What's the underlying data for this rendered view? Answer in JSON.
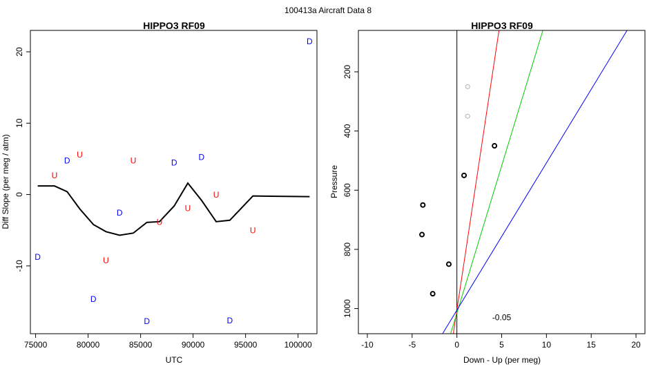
{
  "page_title": "100413a   Aircraft Data 8",
  "colors": {
    "up": "#ff0000",
    "down": "#0000ff",
    "line": "#000000",
    "red_line": "#ff0000",
    "green_line": "#00cc00",
    "blue_line": "#0000ff",
    "grey_point": "#b0b0b0"
  },
  "chart_data": [
    {
      "type": "scatter",
      "title": "HIPPO3 RF09",
      "xlabel": "UTC",
      "ylabel": "Diff Slope (per meg / atm)",
      "xlim": [
        74500,
        101800
      ],
      "ylim": [
        -19.5,
        23
      ],
      "xticks": [
        75000,
        80000,
        85000,
        90000,
        95000,
        100000
      ],
      "yticks": [
        -10,
        0,
        10,
        20
      ],
      "letters": [
        {
          "label": "D",
          "x": 75200,
          "y": -8.7,
          "series": "down"
        },
        {
          "label": "U",
          "x": 76800,
          "y": 2.7,
          "series": "up"
        },
        {
          "label": "D",
          "x": 78000,
          "y": 4.8,
          "series": "down"
        },
        {
          "label": "U",
          "x": 79200,
          "y": 5.6,
          "series": "up"
        },
        {
          "label": "D",
          "x": 80500,
          "y": -14.6,
          "series": "down"
        },
        {
          "label": "U",
          "x": 81700,
          "y": -9.2,
          "series": "up"
        },
        {
          "label": "D",
          "x": 83000,
          "y": -2.5,
          "series": "down"
        },
        {
          "label": "U",
          "x": 84300,
          "y": 4.8,
          "series": "up"
        },
        {
          "label": "D",
          "x": 85600,
          "y": -17.7,
          "series": "down"
        },
        {
          "label": "U",
          "x": 86800,
          "y": -3.8,
          "series": "up"
        },
        {
          "label": "D",
          "x": 88200,
          "y": 4.5,
          "series": "down"
        },
        {
          "label": "U",
          "x": 89500,
          "y": -1.9,
          "series": "up"
        },
        {
          "label": "D",
          "x": 90800,
          "y": 5.3,
          "series": "down"
        },
        {
          "label": "U",
          "x": 92200,
          "y": 0,
          "series": "up"
        },
        {
          "label": "D",
          "x": 93500,
          "y": -17.6,
          "series": "down"
        },
        {
          "label": "U",
          "x": 95700,
          "y": -5,
          "series": "up"
        },
        {
          "label": "D",
          "x": 101100,
          "y": 21.5,
          "series": "down"
        }
      ],
      "smooth_line": {
        "x": [
          75200,
          76800,
          78000,
          79200,
          80500,
          81700,
          83000,
          84300,
          85600,
          86800,
          88200,
          89500,
          90800,
          92200,
          93500,
          95700,
          101100
        ],
        "y": [
          1.2,
          1.2,
          0.4,
          -2,
          -4.2,
          -5.2,
          -5.7,
          -5.4,
          -3.9,
          -3.8,
          -1.6,
          1.6,
          -0.8,
          -3.8,
          -3.6,
          -0.2,
          -0.3
        ]
      }
    },
    {
      "type": "scatter",
      "title": "HIPPO3 RF09",
      "xlabel": "Down - Up (per meg)",
      "ylabel": "Pressure",
      "xlim": [
        -11,
        21
      ],
      "ylim": [
        1085,
        60
      ],
      "xticks": [
        -10,
        -5,
        0,
        5,
        10,
        15,
        20
      ],
      "yticks": [
        200,
        400,
        600,
        800,
        1000
      ],
      "annotation": "-0.05",
      "annotation_pos": {
        "x": 5,
        "y": 1040
      },
      "points": [
        {
          "x": 1.2,
          "y": 250,
          "color": "grey"
        },
        {
          "x": 1.2,
          "y": 350,
          "color": "grey"
        },
        {
          "x": 4.2,
          "y": 450,
          "color": "black"
        },
        {
          "x": 0.8,
          "y": 550,
          "color": "black"
        },
        {
          "x": -3.8,
          "y": 650,
          "color": "black"
        },
        {
          "x": -3.9,
          "y": 750,
          "color": "black"
        },
        {
          "x": -0.9,
          "y": 850,
          "color": "black"
        },
        {
          "x": -2.7,
          "y": 950,
          "color": "black"
        }
      ],
      "lines": [
        {
          "color": "red",
          "x1": -0.4,
          "y1": 1085,
          "x2": 4.7,
          "y2": 60
        },
        {
          "color": "green",
          "x1": -0.7,
          "y1": 1085,
          "x2": 9.6,
          "y2": 60
        },
        {
          "color": "blue",
          "x1": -1.6,
          "y1": 1085,
          "x2": 19.0,
          "y2": 60
        }
      ],
      "zero_line_x": 0
    }
  ]
}
